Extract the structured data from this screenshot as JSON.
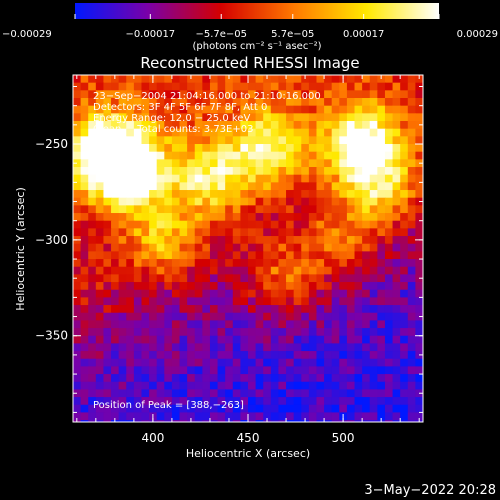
{
  "chart_data": {
    "type": "heatmap",
    "title": "Reconstructed RHESSI Image",
    "xlabel": "Heliocentric X (arcsec)",
    "ylabel": "Heliocentric Y (arcsec)",
    "xlim": [
      358,
      542
    ],
    "ylim": [
      -395,
      -214
    ],
    "x_ticks": [
      400,
      450,
      500
    ],
    "y_ticks": [
      -250,
      -300,
      -350
    ],
    "x_tick_labels": [
      "400",
      "450",
      "500"
    ],
    "y_tick_labels": [
      "−250",
      "−300",
      "−350"
    ],
    "colorbar": {
      "range": [
        -0.00029,
        0.00029
      ],
      "ticks": [
        -0.00029,
        -0.00017,
        -5.7e-05,
        5.7e-05,
        0.00017,
        0.00029
      ],
      "tick_labels": [
        "−0.00029",
        "−0.00017",
        "−5.7e−05",
        "5.7e−05",
        "0.00017",
        "0.00029"
      ],
      "units": "(photons cm⁻² s⁻¹ asec⁻²)",
      "colors": [
        "#0018ff",
        "#7a00a8",
        "#d40000",
        "#ff7800",
        "#ffe800",
        "#ffffff"
      ]
    },
    "annotations": [
      "23−Sep−2004 21:04:16.000 to 21:10:16.000",
      "Detectors: 3F 4F 5F 6F 7F 8F, Att 0",
      "Energy Range: 12.0 − 25.0 keV",
      "Clean     Total counts: 3.73E+03"
    ],
    "peak_label": "Position of Peak = [388,−263]",
    "peak": [
      388,
      -263
    ],
    "bright_regions": [
      {
        "x": 375,
        "y": -255,
        "level": 0.92
      },
      {
        "x": 388,
        "y": -263,
        "level": 1.0
      },
      {
        "x": 430,
        "y": -268,
        "level": 0.75
      },
      {
        "x": 460,
        "y": -252,
        "level": 0.8
      },
      {
        "x": 510,
        "y": -250,
        "level": 0.95
      },
      {
        "x": 520,
        "y": -272,
        "level": 0.7
      },
      {
        "x": 470,
        "y": -320,
        "level": 0.6
      },
      {
        "x": 405,
        "y": -300,
        "level": 0.65
      },
      {
        "x": 500,
        "y": -300,
        "level": 0.55
      },
      {
        "x": 365,
        "y": -330,
        "level": 0.35
      }
    ]
  },
  "footer": {
    "timestamp": "3−May−2022 20:28"
  }
}
